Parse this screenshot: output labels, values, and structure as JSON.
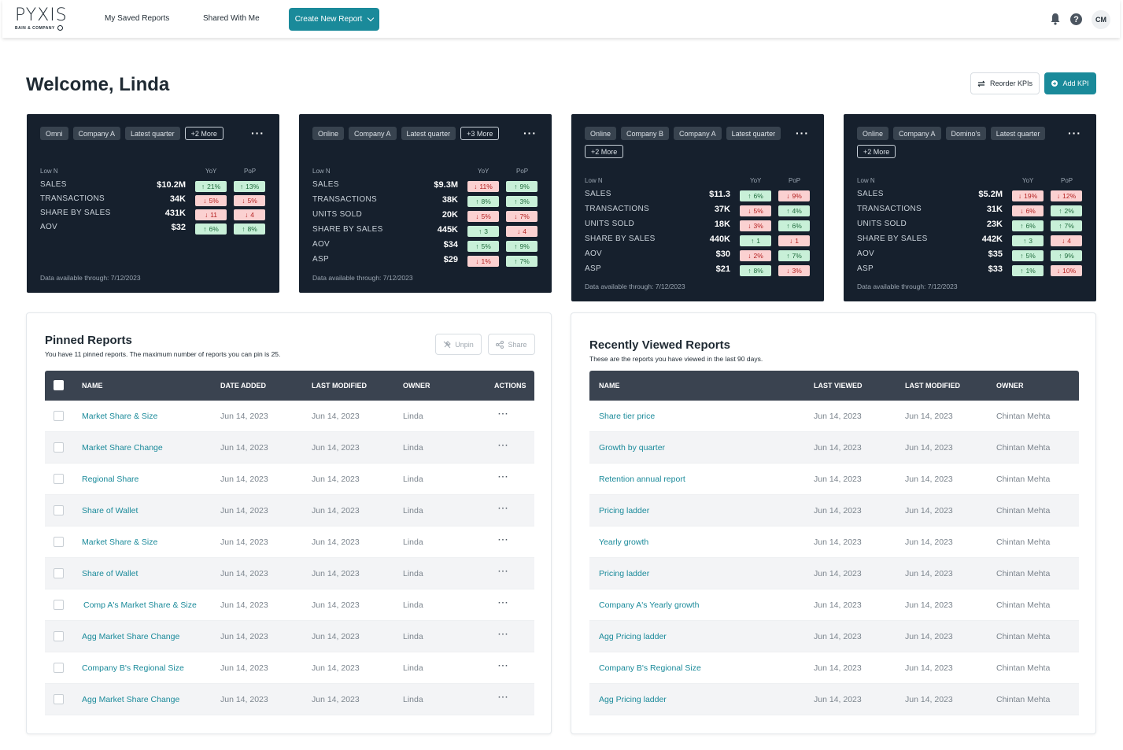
{
  "header": {
    "logo_word": "PYXIS",
    "logo_sub": "BAIN & COMPANY",
    "nav": [
      "My Saved Reports",
      "Shared With Me"
    ],
    "create_label": "Create New Report",
    "avatar_initials": "CM",
    "help_label": "?"
  },
  "welcome": "Welcome, Linda",
  "actions": {
    "reorder": "Reorder KPIs",
    "add": "Add KPI"
  },
  "kpi_cards": [
    {
      "chips": [
        "Omni",
        "Company A",
        "Latest quarter"
      ],
      "more": "+2 More",
      "lown": "Low N",
      "yoy": "YoY",
      "pop": "PoP",
      "rows": [
        {
          "label": "SALES",
          "value": "$10.2M",
          "yoy": {
            "dir": "up",
            "text": "21%"
          },
          "pop": {
            "dir": "up",
            "text": "13%"
          }
        },
        {
          "label": "TRANSACTIONS",
          "value": "34K",
          "yoy": {
            "dir": "down",
            "text": "5%"
          },
          "pop": {
            "dir": "down",
            "text": "5%"
          }
        },
        {
          "label": "SHARE BY SALES",
          "value": "431K",
          "yoy": {
            "dir": "down",
            "text": "11"
          },
          "pop": {
            "dir": "down",
            "text": "4"
          }
        },
        {
          "label": "AOV",
          "value": "$32",
          "yoy": {
            "dir": "up",
            "text": "6%"
          },
          "pop": {
            "dir": "up",
            "text": "8%"
          }
        }
      ],
      "footer": "Data available through: 7/12/2023"
    },
    {
      "chips": [
        "Online",
        "Company A",
        "Latest quarter"
      ],
      "more": "+3 More",
      "lown": "Low N",
      "yoy": "YoY",
      "pop": "PoP",
      "rows": [
        {
          "label": "SALES",
          "value": "$9.3M",
          "yoy": {
            "dir": "down",
            "text": "11%"
          },
          "pop": {
            "dir": "up",
            "text": "9%"
          }
        },
        {
          "label": "TRANSACTIONS",
          "value": "38K",
          "yoy": {
            "dir": "up",
            "text": "8%"
          },
          "pop": {
            "dir": "up",
            "text": "3%"
          }
        },
        {
          "label": "UNITS SOLD",
          "value": "20K",
          "yoy": {
            "dir": "down",
            "text": "5%"
          },
          "pop": {
            "dir": "down",
            "text": "7%"
          }
        },
        {
          "label": "SHARE BY SALES",
          "value": "445K",
          "yoy": {
            "dir": "up",
            "text": "3"
          },
          "pop": {
            "dir": "down",
            "text": "4"
          }
        },
        {
          "label": "AOV",
          "value": "$34",
          "yoy": {
            "dir": "up",
            "text": "5%"
          },
          "pop": {
            "dir": "up",
            "text": "9%"
          }
        },
        {
          "label": "ASP",
          "value": "$29",
          "yoy": {
            "dir": "down",
            "text": "1%"
          },
          "pop": {
            "dir": "up",
            "text": "7%"
          }
        }
      ],
      "footer": "Data available through: 7/12/2023"
    },
    {
      "chips": [
        "Online",
        "Company B",
        "Company A",
        "Latest quarter"
      ],
      "more": "+2 More",
      "lown": "Low N",
      "yoy": "YoY",
      "pop": "PoP",
      "rows": [
        {
          "label": "SALES",
          "value": "$11.3",
          "yoy": {
            "dir": "up",
            "text": "6%"
          },
          "pop": {
            "dir": "down",
            "text": "9%"
          }
        },
        {
          "label": "TRANSACTIONS",
          "value": "37K",
          "yoy": {
            "dir": "down",
            "text": "5%"
          },
          "pop": {
            "dir": "up",
            "text": "4%"
          }
        },
        {
          "label": "UNITS SOLD",
          "value": "18K",
          "yoy": {
            "dir": "down",
            "text": "3%"
          },
          "pop": {
            "dir": "up",
            "text": "6%"
          }
        },
        {
          "label": "SHARE BY SALES",
          "value": "440K",
          "yoy": {
            "dir": "up",
            "text": "1"
          },
          "pop": {
            "dir": "down",
            "text": "1"
          }
        },
        {
          "label": "AOV",
          "value": "$30",
          "yoy": {
            "dir": "down",
            "text": "2%"
          },
          "pop": {
            "dir": "up",
            "text": "7%"
          }
        },
        {
          "label": "ASP",
          "value": "$21",
          "yoy": {
            "dir": "up",
            "text": "8%"
          },
          "pop": {
            "dir": "down",
            "text": "3%"
          }
        }
      ],
      "footer": "Data available through: 7/12/2023"
    },
    {
      "chips": [
        "Online",
        "Company A",
        "Domino's",
        "Latest quarter"
      ],
      "more": "+2 More",
      "lown": "Low N",
      "yoy": "YoY",
      "pop": "PoP",
      "rows": [
        {
          "label": "SALES",
          "value": "$5.2M",
          "yoy": {
            "dir": "down",
            "text": "19%"
          },
          "pop": {
            "dir": "down",
            "text": "12%"
          }
        },
        {
          "label": "TRANSACTIONS",
          "value": "31K",
          "yoy": {
            "dir": "down",
            "text": "6%"
          },
          "pop": {
            "dir": "up",
            "text": "2%"
          }
        },
        {
          "label": "UNITS SOLD",
          "value": "23K",
          "yoy": {
            "dir": "up",
            "text": "6%"
          },
          "pop": {
            "dir": "up",
            "text": "7%"
          }
        },
        {
          "label": "SHARE BY SALES",
          "value": "442K",
          "yoy": {
            "dir": "up",
            "text": "3"
          },
          "pop": {
            "dir": "down",
            "text": "4"
          }
        },
        {
          "label": "AOV",
          "value": "$35",
          "yoy": {
            "dir": "up",
            "text": "5%"
          },
          "pop": {
            "dir": "up",
            "text": "9%"
          }
        },
        {
          "label": "ASP",
          "value": "$33",
          "yoy": {
            "dir": "up",
            "text": "1%"
          },
          "pop": {
            "dir": "down",
            "text": "10%"
          }
        }
      ],
      "footer": "Data available through: 7/12/2023"
    }
  ],
  "pinned": {
    "title": "Pinned Reports",
    "subtitle": "You have 11 pinned reports. The maximum number of reports you can pin is 25.",
    "unpin": "Unpin",
    "share": "Share",
    "columns": [
      "NAME",
      "DATE ADDED",
      "LAST MODIFIED",
      "OWNER",
      "ACTIONS"
    ],
    "rows": [
      {
        "name": "Market Share & Size",
        "added": "Jun 14, 2023",
        "modified": "Jun 14, 2023",
        "owner": "Linda"
      },
      {
        "name": "Market Share Change",
        "added": "Jun 14, 2023",
        "modified": "Jun 14, 2023",
        "owner": "Linda"
      },
      {
        "name": "Regional Share",
        "added": "Jun 14, 2023",
        "modified": "Jun 14, 2023",
        "owner": "Linda"
      },
      {
        "name": "Share of Wallet",
        "added": "Jun 14, 2023",
        "modified": "Jun 14, 2023",
        "owner": "Linda"
      },
      {
        "name": "Market Share & Size",
        "added": "Jun 14, 2023",
        "modified": "Jun 14, 2023",
        "owner": "Linda"
      },
      {
        "name": "Share of Wallet",
        "added": "Jun 14, 2023",
        "modified": "Jun 14, 2023",
        "owner": "Linda"
      },
      {
        "name": "Comp A's Market Share & Size",
        "added": "Jun 14, 2023",
        "modified": "Jun 14, 2023",
        "owner": "Linda"
      },
      {
        "name": "Agg Market Share Change",
        "added": "Jun 14, 2023",
        "modified": "Jun 14, 2023",
        "owner": "Linda"
      },
      {
        "name": "Company B's Regional Size",
        "added": "Jun 14, 2023",
        "modified": "Jun 14, 2023",
        "owner": "Linda"
      },
      {
        "name": "Agg Market Share Change",
        "added": "Jun 14, 2023",
        "modified": "Jun 14, 2023",
        "owner": "Linda"
      }
    ],
    "action_glyph": "···"
  },
  "recent": {
    "title": "Recently Viewed Reports",
    "subtitle": "These are the reports you have viewed in the last 90 days.",
    "columns": [
      "NAME",
      "LAST VIEWED",
      "LAST MODIFIED",
      "OWNER"
    ],
    "rows": [
      {
        "name": "Share tier price",
        "viewed": "Jun 14, 2023",
        "modified": "Jun 14, 2023",
        "owner": "Chintan Mehta"
      },
      {
        "name": "Growth by quarter",
        "viewed": "Jun 14, 2023",
        "modified": "Jun 14, 2023",
        "owner": "Chintan Mehta"
      },
      {
        "name": "Retention annual report",
        "viewed": "Jun 14, 2023",
        "modified": "Jun 14, 2023",
        "owner": "Chintan Mehta"
      },
      {
        "name": "Pricing ladder",
        "viewed": "Jun 14, 2023",
        "modified": "Jun 14, 2023",
        "owner": "Chintan Mehta"
      },
      {
        "name": "Yearly growth",
        "viewed": "Jun 14, 2023",
        "modified": "Jun 14, 2023",
        "owner": "Chintan Mehta"
      },
      {
        "name": "Pricing ladder",
        "viewed": "Jun 14, 2023",
        "modified": "Jun 14, 2023",
        "owner": "Chintan Mehta"
      },
      {
        "name": "Company A's Yearly growth",
        "viewed": "Jun 14, 2023",
        "modified": "Jun 14, 2023",
        "owner": "Chintan Mehta"
      },
      {
        "name": "Agg Pricing ladder",
        "viewed": "Jun 14, 2023",
        "modified": "Jun 14, 2023",
        "owner": "Chintan Mehta"
      },
      {
        "name": "Company B's Regional Size",
        "viewed": "Jun 14, 2023",
        "modified": "Jun 14, 2023",
        "owner": "Chintan Mehta"
      },
      {
        "name": "Agg Pricing ladder",
        "viewed": "Jun 14, 2023",
        "modified": "Jun 14, 2023",
        "owner": "Chintan Mehta"
      }
    ]
  },
  "colors": {
    "accent": "#1a8a9a",
    "card_bg": "#16202d",
    "up_bg": "#c8f0d8",
    "down_bg": "#fbd1d1"
  },
  "icons": [
    "bell-icon",
    "help-icon",
    "chevron-down-icon",
    "swap-icon",
    "plus-circle-icon",
    "unpin-icon",
    "share-icon",
    "more-icon"
  ]
}
